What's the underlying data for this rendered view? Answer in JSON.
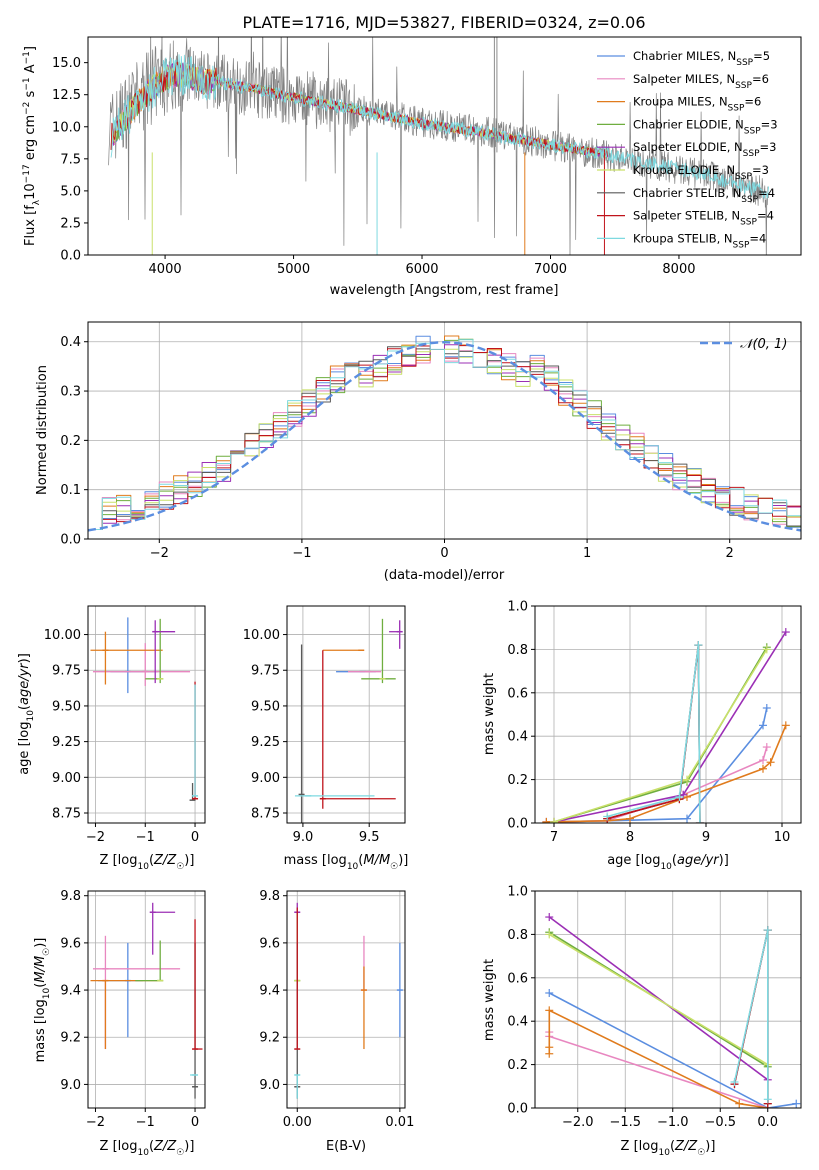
{
  "figure": {
    "title": "PLATE=1716, MJD=53827, FIBERID=0324, z=0.06"
  },
  "colors": {
    "chabrier_miles": "#5b8ee0",
    "salpeter_miles": "#e887c0",
    "kroupa_miles": "#e07b1d",
    "chabrier_elodie": "#6fae3f",
    "salpeter_elodie": "#9b2fb5",
    "kroupa_elodie": "#c9e06a",
    "chabrier_stelib": "#5a5a5a",
    "salpeter_stelib": "#c0141c",
    "kroupa_stelib": "#7ed9e0",
    "data": "#808080",
    "grid": "#b0b0b0"
  },
  "chart_data": [
    {
      "id": "spectrum",
      "type": "line",
      "xlabel": "wavelength [Angstrom, rest frame]",
      "ylabel": "Flux [f_λ10^-17 erg cm^-2 s^-1 A^-1]",
      "xlim": [
        3400,
        8950
      ],
      "ylim": [
        0,
        17
      ],
      "xticks": [
        4000,
        5000,
        6000,
        7000,
        8000
      ],
      "yticks": [
        0.0,
        2.5,
        5.0,
        7.5,
        10.0,
        12.5,
        15.0
      ],
      "legend_position": "top-right",
      "legend": [
        {
          "label": "Chabrier MILES, N_SSP=5",
          "color_key": "chabrier_miles"
        },
        {
          "label": "Salpeter MILES, N_SSP=6",
          "color_key": "salpeter_miles"
        },
        {
          "label": "Kroupa MILES, N_SSP=6",
          "color_key": "kroupa_miles"
        },
        {
          "label": "Chabrier ELODIE, N_SSP=3",
          "color_key": "chabrier_elodie"
        },
        {
          "label": "Salpeter ELODIE, N_SSP=3",
          "color_key": "salpeter_elodie"
        },
        {
          "label": "Kroupa ELODIE, N_SSP=3",
          "color_key": "kroupa_elodie"
        },
        {
          "label": "Chabrier STELIB, N_SSP=4",
          "color_key": "chabrier_stelib"
        },
        {
          "label": "Salpeter STELIB, N_SSP=4",
          "color_key": "salpeter_stelib"
        },
        {
          "label": "Kroupa STELIB, N_SSP=4",
          "color_key": "kroupa_stelib"
        }
      ],
      "data_continuum": {
        "x": [
          3600,
          3700,
          3800,
          3900,
          4000,
          4100,
          4200,
          4300,
          4400,
          4500,
          4700,
          4900,
          5100,
          5300,
          5500,
          5700,
          5900,
          6100,
          6300,
          6500,
          6700,
          6900,
          7100,
          7300,
          7500,
          7700,
          7900,
          8100,
          8300,
          8500,
          8700
        ],
        "y": [
          10.0,
          11.3,
          12.3,
          13.2,
          13.8,
          14.2,
          14.0,
          13.6,
          13.5,
          13.3,
          13.0,
          12.5,
          12.2,
          11.8,
          11.3,
          11.0,
          10.6,
          10.2,
          9.9,
          9.6,
          9.2,
          8.8,
          8.4,
          8.0,
          7.7,
          7.3,
          6.9,
          6.5,
          6.0,
          5.4,
          4.8
        ]
      },
      "model_continuum": {
        "x": [
          3580,
          3700,
          3800,
          3900,
          4000,
          4100,
          4200,
          4300,
          4400,
          4500,
          4700,
          4900,
          5100,
          5300,
          5500,
          5700,
          5900,
          6100,
          6300,
          6500,
          6700,
          6900,
          7100,
          7300,
          7450
        ],
        "y": [
          9.2,
          10.8,
          12.0,
          13.0,
          13.8,
          14.1,
          13.9,
          13.5,
          13.6,
          13.3,
          13.0,
          12.5,
          12.1,
          11.7,
          11.3,
          10.9,
          10.5,
          10.1,
          9.8,
          9.5,
          9.1,
          8.8,
          8.4,
          8.1,
          7.9
        ]
      },
      "kroupa_stelib_extent": [
        3560,
        8700
      ]
    },
    {
      "id": "residuals",
      "type": "histogram",
      "xlabel": "(data-model)/error",
      "ylabel": "Normed distribution",
      "xlim": [
        -2.5,
        2.5
      ],
      "ylim": [
        0,
        0.44
      ],
      "xticks": [
        -2,
        -1,
        0,
        1,
        2
      ],
      "yticks": [
        0.0,
        0.1,
        0.2,
        0.3,
        0.4
      ],
      "reference": {
        "label": "𝒩(0, 1)",
        "mean": 0,
        "sigma": 1,
        "color": "#5b8ee0"
      },
      "legend_position": "top-right"
    },
    {
      "id": "age-vs-Z",
      "type": "errorbar",
      "xlabel": "Z [log10(Z/Z☉)]",
      "ylabel": "age [log10(age/yr)]",
      "xlim": [
        -2.15,
        0.2
      ],
      "ylim": [
        8.68,
        10.2
      ],
      "xticks": [
        -2,
        -1,
        0
      ],
      "yticks": [
        8.75,
        9.0,
        9.25,
        9.5,
        9.75,
        10.0
      ],
      "points": [
        {
          "series": "chabrier_miles",
          "x": -1.35,
          "y": 9.74,
          "xerr": [
            0.35,
            0.6
          ],
          "yerr": [
            0.15,
            0.38
          ]
        },
        {
          "series": "salpeter_miles",
          "x": -1.0,
          "y": 9.74,
          "xerr": [
            1.05,
            0.9
          ],
          "yerr": [
            0.1,
            0.2
          ]
        },
        {
          "series": "kroupa_miles",
          "x": -1.8,
          "y": 9.89,
          "xerr": [
            0.3,
            1.15
          ],
          "yerr": [
            0.24,
            0.13
          ]
        },
        {
          "series": "chabrier_elodie",
          "x": -0.7,
          "y": 9.69,
          "xerr": [
            0.3,
            0.0
          ],
          "yerr": [
            0.03,
            0.42
          ]
        },
        {
          "series": "salpeter_elodie",
          "x": -0.8,
          "y": 10.02,
          "xerr": [
            0.0,
            0.4
          ],
          "yerr": [
            0.36,
            0.08
          ]
        },
        {
          "series": "kroupa_elodie",
          "x": -0.7,
          "y": 9.69,
          "xerr": [
            0.0,
            0.0
          ],
          "yerr": [
            0.0,
            0.0
          ]
        },
        {
          "series": "chabrier_stelib",
          "x": -0.05,
          "y": 8.84,
          "xerr": [
            0.0,
            0.0
          ],
          "yerr": [
            0.0,
            0.12
          ]
        },
        {
          "series": "salpeter_stelib",
          "x": 0.0,
          "y": 8.85,
          "xerr": [
            0.0,
            0.0
          ],
          "yerr": [
            0.0,
            0.82
          ]
        },
        {
          "series": "kroupa_stelib",
          "x": 0.0,
          "y": 8.87,
          "xerr": [
            0.0,
            0.0
          ],
          "yerr": [
            0.0,
            0.78
          ]
        }
      ]
    },
    {
      "id": "age-vs-mass",
      "type": "errorbar",
      "xlabel": "mass [log10(M/M☉)]",
      "ylabel": "",
      "xlim": [
        8.88,
        9.77
      ],
      "ylim": [
        8.68,
        10.2
      ],
      "xticks": [
        9.0,
        9.5
      ],
      "yticks": [
        8.75,
        9.0,
        9.25,
        9.5,
        9.75,
        10.0
      ],
      "points": [
        {
          "series": "chabrier_miles",
          "x": 9.45,
          "y": 9.74,
          "xerr": [
            0.2,
            0.1
          ],
          "yerr": [
            0.0,
            0.0
          ]
        },
        {
          "series": "salpeter_miles",
          "x": 9.49,
          "y": 9.74,
          "xerr": [
            0.15,
            0.1
          ],
          "yerr": [
            0.0,
            0.0
          ]
        },
        {
          "series": "kroupa_miles",
          "x": 9.44,
          "y": 9.89,
          "xerr": [
            0.29,
            0.0
          ],
          "yerr": [
            0.0,
            0.0
          ]
        },
        {
          "series": "chabrier_elodie",
          "x": 9.6,
          "y": 9.69,
          "xerr": [
            0.16,
            0.1
          ],
          "yerr": [
            0.03,
            0.42
          ]
        },
        {
          "series": "salpeter_elodie",
          "x": 9.73,
          "y": 10.02,
          "xerr": [
            0.08,
            0.0
          ],
          "yerr": [
            0.12,
            0.08
          ]
        },
        {
          "series": "kroupa_elodie",
          "x": 9.6,
          "y": 9.69,
          "xerr": [
            0.0,
            0.0
          ],
          "yerr": [
            0.0,
            0.0
          ]
        },
        {
          "series": "chabrier_stelib",
          "x": 8.99,
          "y": 8.88,
          "xerr": [
            0.0,
            0.0
          ],
          "yerr": [
            0.2,
            1.05
          ]
        },
        {
          "series": "salpeter_stelib",
          "x": 9.15,
          "y": 8.85,
          "xerr": [
            0.0,
            0.55
          ],
          "yerr": [
            0.07,
            1.04
          ]
        },
        {
          "series": "kroupa_stelib",
          "x": 9.04,
          "y": 8.87,
          "xerr": [
            0.1,
            0.5
          ],
          "yerr": [
            0.0,
            0.0
          ]
        }
      ]
    },
    {
      "id": "mass-weight-vs-age",
      "type": "line",
      "xlabel": "age  [log10(age/yr)]",
      "ylabel": "mass weight",
      "xlim": [
        6.75,
        10.25
      ],
      "ylim": [
        0,
        1.0
      ],
      "xticks": [
        7,
        8,
        9,
        10
      ],
      "yticks": [
        0.0,
        0.2,
        0.4,
        0.6,
        0.8,
        1.0
      ],
      "series": [
        {
          "name": "chabrier_miles",
          "x": [
            6.9,
            7.7,
            8.75,
            9.75,
            9.8
          ],
          "y": [
            0.005,
            0.01,
            0.02,
            0.45,
            0.53
          ]
        },
        {
          "name": "salpeter_miles",
          "x": [
            6.9,
            7.7,
            8.7,
            9.75,
            9.8
          ],
          "y": [
            0.005,
            0.01,
            0.13,
            0.29,
            0.35
          ]
        },
        {
          "name": "kroupa_miles",
          "x": [
            6.9,
            7.7,
            8.0,
            8.75,
            9.75,
            9.85,
            10.05
          ],
          "y": [
            0.005,
            0.01,
            0.02,
            0.12,
            0.25,
            0.28,
            0.45
          ]
        },
        {
          "name": "chabrier_elodie",
          "x": [
            7.0,
            8.75,
            9.8
          ],
          "y": [
            0.005,
            0.19,
            0.81
          ]
        },
        {
          "name": "salpeter_elodie",
          "x": [
            7.0,
            8.7,
            10.05
          ],
          "y": [
            0.005,
            0.13,
            0.88
          ]
        },
        {
          "name": "kroupa_elodie",
          "x": [
            7.0,
            8.75,
            9.8
          ],
          "y": [
            0.005,
            0.2,
            0.8
          ]
        },
        {
          "name": "chabrier_stelib",
          "x": [
            7.7,
            8.65,
            8.9,
            8.92
          ],
          "y": [
            0.02,
            0.11,
            0.82,
            0.0
          ]
        },
        {
          "name": "salpeter_stelib",
          "x": [
            7.7,
            8.65,
            8.9,
            8.92
          ],
          "y": [
            0.02,
            0.11,
            0.82,
            0.0
          ]
        },
        {
          "name": "kroupa_stelib",
          "x": [
            7.7,
            8.65,
            8.9,
            8.92
          ],
          "y": [
            0.03,
            0.12,
            0.82,
            0.0
          ]
        }
      ]
    },
    {
      "id": "mass-vs-Z",
      "type": "errorbar",
      "xlabel": "Z [log10(Z/Z☉)]",
      "ylabel": "mass [log10(M/M☉)]",
      "xlim": [
        -2.15,
        0.2
      ],
      "ylim": [
        8.9,
        9.82
      ],
      "xticks": [
        -2,
        -1,
        0
      ],
      "yticks": [
        9.0,
        9.2,
        9.4,
        9.6,
        9.8
      ],
      "points": [
        {
          "series": "chabrier_miles",
          "x": -1.35,
          "y": 9.44,
          "xerr": [
            0.6,
            0.3
          ],
          "yerr": [
            0.24,
            0.16
          ]
        },
        {
          "series": "salpeter_miles",
          "x": -1.8,
          "y": 9.49,
          "xerr": [
            0.25,
            1.5
          ],
          "yerr": [
            0.34,
            0.14
          ]
        },
        {
          "series": "kroupa_miles",
          "x": -1.8,
          "y": 9.44,
          "xerr": [
            0.3,
            1.1
          ],
          "yerr": [
            0.29,
            0.0
          ]
        },
        {
          "series": "chabrier_elodie",
          "x": -0.7,
          "y": 9.44,
          "xerr": [
            0.5,
            0.0
          ],
          "yerr": [
            0.0,
            0.17
          ]
        },
        {
          "series": "salpeter_elodie",
          "x": -0.85,
          "y": 9.73,
          "xerr": [
            0.0,
            0.45
          ],
          "yerr": [
            0.18,
            0.04
          ]
        },
        {
          "series": "kroupa_elodie",
          "x": -0.7,
          "y": 9.44,
          "xerr": [
            0.0,
            0.0
          ],
          "yerr": [
            0.0,
            0.0
          ]
        },
        {
          "series": "chabrier_stelib",
          "x": 0.0,
          "y": 8.99,
          "xerr": [
            0.0,
            0.0
          ],
          "yerr": [
            0.05,
            0.61
          ]
        },
        {
          "series": "salpeter_stelib",
          "x": 0.0,
          "y": 9.15,
          "xerr": [
            0.0,
            0.15
          ],
          "yerr": [
            0.0,
            0.55
          ]
        },
        {
          "series": "kroupa_stelib",
          "x": 0.0,
          "y": 9.04,
          "xerr": [
            0.1,
            0.0
          ],
          "yerr": [
            0.0,
            0.0
          ]
        }
      ]
    },
    {
      "id": "mass-vs-ebv",
      "type": "errorbar",
      "xlabel": "E(B-V)",
      "ylabel": "",
      "xlim": [
        -0.001,
        0.0105
      ],
      "ylim": [
        8.9,
        9.82
      ],
      "xticks": [
        0.0,
        0.01
      ],
      "yticks": [
        9.0,
        9.2,
        9.4,
        9.6,
        9.8
      ],
      "points": [
        {
          "series": "chabrier_miles",
          "x": 0.01,
          "y": 9.4,
          "xerr": [
            0.0,
            0.0
          ],
          "yerr": [
            0.2,
            0.2
          ]
        },
        {
          "series": "salpeter_miles",
          "x": 0.0065,
          "y": 9.4,
          "xerr": [
            0.0,
            0.0
          ],
          "yerr": [
            0.0,
            0.23
          ]
        },
        {
          "series": "kroupa_miles",
          "x": 0.0065,
          "y": 9.4,
          "xerr": [
            0.0,
            0.0
          ],
          "yerr": [
            0.25,
            0.1
          ]
        },
        {
          "series": "chabrier_elodie",
          "x": 0.0,
          "y": 9.44,
          "xerr": [
            0.0,
            0.0
          ],
          "yerr": [
            0.0,
            0.3
          ]
        },
        {
          "series": "salpeter_elodie",
          "x": 0.0,
          "y": 9.73,
          "xerr": [
            0.0,
            0.0
          ],
          "yerr": [
            0.0,
            0.04
          ]
        },
        {
          "series": "kroupa_elodie",
          "x": 0.0,
          "y": 9.44,
          "xerr": [
            0.0,
            0.0
          ],
          "yerr": [
            0.0,
            0.0
          ]
        },
        {
          "series": "chabrier_stelib",
          "x": 0.0,
          "y": 8.99,
          "xerr": [
            0.0,
            0.0
          ],
          "yerr": [
            0.05,
            0.61
          ]
        },
        {
          "series": "salpeter_stelib",
          "x": 0.0,
          "y": 9.15,
          "xerr": [
            0.0,
            0.0
          ],
          "yerr": [
            0.0,
            0.6
          ]
        },
        {
          "series": "kroupa_stelib",
          "x": 0.0,
          "y": 9.04,
          "xerr": [
            0.0,
            0.0
          ],
          "yerr": [
            0.1,
            0.0
          ]
        }
      ]
    },
    {
      "id": "mass-weight-vs-Z",
      "type": "line",
      "xlabel": "Z [log10(Z/Z☉)]",
      "ylabel": "mass weight",
      "xlim": [
        -2.45,
        0.35
      ],
      "ylim": [
        0,
        1.0
      ],
      "xticks": [
        -2.0,
        -1.5,
        -1.0,
        -0.5,
        0.0
      ],
      "yticks": [
        0.0,
        0.2,
        0.4,
        0.6,
        0.8,
        1.0
      ],
      "series": [
        {
          "name": "chabrier_miles",
          "x": [
            -2.3,
            0.0,
            0.3
          ],
          "y": [
            0.53,
            0.0,
            0.02
          ]
        },
        {
          "name": "salpeter_miles",
          "x": [
            -2.3,
            -2.3,
            0.0
          ],
          "y": [
            0.35,
            0.33,
            0.0
          ]
        },
        {
          "name": "kroupa_miles",
          "x": [
            -2.3,
            -2.3,
            -2.3,
            -0.3,
            0.0
          ],
          "y": [
            0.25,
            0.28,
            0.45,
            0.02,
            0.0
          ]
        },
        {
          "name": "chabrier_elodie",
          "x": [
            -2.3,
            0.0
          ],
          "y": [
            0.81,
            0.19
          ]
        },
        {
          "name": "salpeter_elodie",
          "x": [
            -2.3,
            0.0
          ],
          "y": [
            0.88,
            0.13
          ]
        },
        {
          "name": "kroupa_elodie",
          "x": [
            -2.3,
            0.0
          ],
          "y": [
            0.8,
            0.2
          ]
        },
        {
          "name": "chabrier_stelib",
          "x": [
            -0.35,
            0.0,
            0.0
          ],
          "y": [
            0.11,
            0.82,
            0.02
          ]
        },
        {
          "name": "salpeter_stelib",
          "x": [
            -0.35,
            0.0,
            0.0
          ],
          "y": [
            0.11,
            0.82,
            0.02
          ]
        },
        {
          "name": "kroupa_stelib",
          "x": [
            -0.35,
            0.0,
            0.0
          ],
          "y": [
            0.12,
            0.82,
            0.04
          ]
        }
      ]
    }
  ]
}
